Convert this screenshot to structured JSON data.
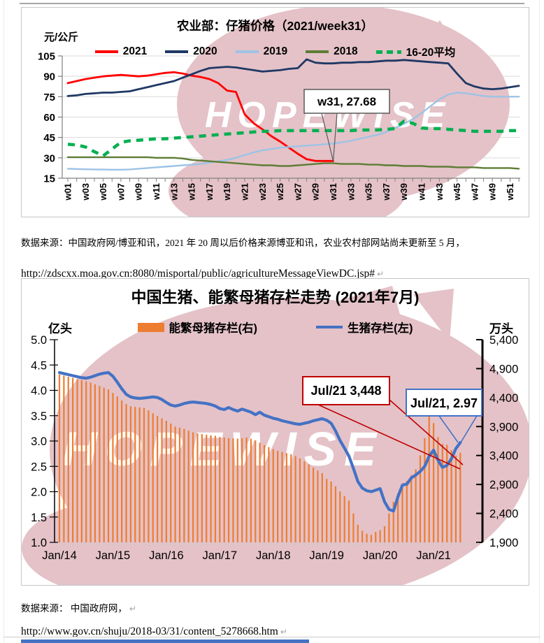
{
  "watermark": {
    "text": "HOPEWISE",
    "color": "#e4c2c8",
    "text_color": "#ffffff"
  },
  "notes": {
    "source1": "数据来源：中国政府网/博亚和讯，2021 年 20 周以后价格来源博亚和讯，农业农村部网站尚未更新至 5 月，",
    "url1": "http://zdscxx.moa.gov.cn:8080/misportal/public/agricultureMessageViewDC.jsp#",
    "source2": "数据来源： 中国政府网，",
    "url2": "http://www.gov.cn/shuju/2018-03/31/content_5278668.htm",
    "mark": "↵"
  },
  "chart_data": [
    {
      "type": "line",
      "title": "农业部：仔猪价格（2021/week31）",
      "ylabel": "元/公斤",
      "ylim": [
        15,
        105
      ],
      "yticks": [
        105,
        90,
        75,
        60,
        45,
        30,
        15
      ],
      "weeks": 52,
      "x_tick_labels": [
        "w01",
        "w03",
        "w05",
        "w07",
        "w09",
        "w11",
        "w13",
        "w15",
        "w17",
        "w19",
        "w21",
        "w23",
        "w25",
        "w27",
        "w29",
        "w31",
        "w33",
        "w35",
        "w37",
        "w39",
        "w41",
        "w43",
        "w45",
        "w47",
        "w49",
        "w51"
      ],
      "grid": true,
      "legend_position": "top",
      "annotation": {
        "label": "w31, 27.68",
        "week": 31,
        "value": 27.68
      },
      "series": [
        {
          "name": "2021",
          "color": "#FF0000",
          "style": "solid",
          "values": [
            85,
            86.5,
            88,
            89,
            90,
            90.5,
            91,
            90.5,
            90,
            90.5,
            91.5,
            92.5,
            93,
            92,
            90.5,
            89.5,
            88,
            85,
            79.5,
            78.5,
            62,
            55.5,
            51,
            46,
            42,
            37.5,
            33,
            29,
            27.7,
            27.7,
            27.68
          ]
        },
        {
          "name": "2020",
          "color": "#1F3864",
          "style": "solid",
          "values": [
            75.5,
            76,
            77,
            77.5,
            78,
            78,
            78.5,
            79,
            80.5,
            82,
            83.5,
            85,
            86.5,
            89,
            91.5,
            94,
            96,
            96.5,
            97,
            96.5,
            95.5,
            94.5,
            93.5,
            94,
            94.5,
            95.5,
            96,
            102.5,
            100,
            99.5,
            99.5,
            100,
            100,
            100.5,
            100.5,
            101,
            101.5,
            101.5,
            102,
            101.5,
            101,
            100.5,
            100,
            99.5,
            92,
            85,
            82.5,
            81,
            80.5,
            81,
            82,
            83
          ]
        },
        {
          "name": "2019",
          "color": "#9DC3E6",
          "style": "solid",
          "values": [
            22,
            21.8,
            21.6,
            21.5,
            21.4,
            21.3,
            21.3,
            21.5,
            22,
            22.5,
            23,
            23.5,
            24,
            24.5,
            25,
            25.5,
            26.5,
            27.5,
            28.5,
            30,
            32,
            34,
            35.5,
            36.5,
            37.5,
            38,
            38.5,
            39,
            39.5,
            40,
            40.5,
            41.5,
            42.5,
            44,
            45.5,
            47,
            49,
            52,
            55,
            58.5,
            63,
            68,
            73,
            76.5,
            78,
            77.5,
            76.5,
            75.5,
            75,
            75,
            75,
            75
          ]
        },
        {
          "name": "2018",
          "color": "#5E7D35",
          "style": "solid",
          "values": [
            30.5,
            30.5,
            30.5,
            30.5,
            30.5,
            30.5,
            30.5,
            30.5,
            30.5,
            30.5,
            30,
            30,
            30,
            29.5,
            28.5,
            28,
            27.5,
            27,
            26.5,
            26,
            25.5,
            25,
            24.5,
            24.5,
            24,
            24,
            24.5,
            25,
            25.5,
            26,
            26,
            25.5,
            25.5,
            25.5,
            25,
            25,
            24.5,
            24.5,
            24,
            24,
            24,
            23.5,
            23.5,
            23.5,
            23,
            23,
            23,
            22.5,
            22.5,
            22.5,
            22.5,
            22
          ]
        },
        {
          "name": "16-20平均",
          "color": "#00B050",
          "style": "dashed",
          "values": [
            40,
            39.5,
            38,
            34.5,
            31.5,
            36.5,
            41.5,
            42.5,
            43,
            43.5,
            44,
            44,
            44.5,
            45,
            45.5,
            46,
            46.5,
            47,
            47.5,
            48,
            48.5,
            49,
            49.5,
            49.5,
            50,
            50,
            50,
            50,
            50,
            50,
            50,
            50,
            50,
            50.5,
            50.5,
            50.5,
            51,
            51.5,
            57,
            55.5,
            52,
            51.5,
            51.5,
            51,
            50.5,
            50,
            49.5,
            49.5,
            49.5,
            49.5,
            50,
            50
          ]
        }
      ]
    },
    {
      "type": "bar+line",
      "title": "中国生猪、能繁母猪存栏走势 (2021年7月)",
      "left_axis_label": "亿头",
      "right_axis_label": "万头",
      "left_ylim": [
        1.0,
        5.0
      ],
      "right_ylim": [
        1900,
        5400
      ],
      "left_yticks": [
        5.0,
        4.5,
        4.0,
        3.5,
        3.0,
        2.5,
        2.0,
        1.5,
        1.0
      ],
      "left_ytick_labels": [
        "5.0",
        "4.5",
        "4.0",
        "3.5",
        "3.0",
        "2.5",
        "2.0",
        "1.5",
        "1.0"
      ],
      "right_yticks": [
        5400,
        4900,
        4400,
        3900,
        3400,
        2900,
        2400,
        1900
      ],
      "right_ytick_labels": [
        "5,400",
        "4,900",
        "4,400",
        "3,900",
        "3,400",
        "2,900",
        "2,400",
        "1,900"
      ],
      "x_tick_labels": [
        "Jan/14",
        "Jan/15",
        "Jan/16",
        "Jan/17",
        "Jan/18",
        "Jan/19",
        "Jan/20",
        "Jan/21"
      ],
      "months_start": "Jan/14",
      "months_end": "Jul/21",
      "grid": false,
      "bar_series": {
        "name": "能繁母猪存栏(右)",
        "axis": "right",
        "color": "#ED7D31",
        "values": [
          4800,
          4780,
          4760,
          4740,
          4720,
          4700,
          4680,
          4660,
          4630,
          4600,
          4570,
          4540,
          4480,
          4420,
          4350,
          4290,
          4250,
          4240,
          4230,
          4220,
          4180,
          4130,
          4080,
          4040,
          4000,
          3950,
          3900,
          3880,
          3860,
          3830,
          3800,
          3780,
          3770,
          3760,
          3750,
          3740,
          3720,
          3710,
          3700,
          3695,
          3690,
          3700,
          3710,
          3690,
          3660,
          3620,
          3580,
          3545,
          3510,
          3480,
          3460,
          3440,
          3420,
          3390,
          3350,
          3300,
          3245,
          3190,
          3140,
          3095,
          2995,
          2950,
          2870,
          2780,
          2700,
          2620,
          2400,
          2205,
          2100,
          2050,
          2030,
          2080,
          2110,
          2180,
          2400,
          2600,
          2750,
          2870,
          2960,
          3060,
          3160,
          3400,
          3700,
          4185,
          3960,
          3720,
          3600,
          3585,
          3495,
          3400,
          3448
        ]
      },
      "line_series": {
        "name": "生猪存栏(左)",
        "axis": "left",
        "color": "#4472C4",
        "values": [
          4.35,
          4.33,
          4.31,
          4.29,
          4.27,
          4.25,
          4.24,
          4.26,
          4.29,
          4.32,
          4.34,
          4.35,
          4.28,
          4.16,
          4.03,
          3.92,
          3.87,
          3.85,
          3.84,
          3.85,
          3.86,
          3.87,
          3.86,
          3.82,
          3.76,
          3.71,
          3.69,
          3.71,
          3.74,
          3.76,
          3.77,
          3.76,
          3.75,
          3.74,
          3.72,
          3.69,
          3.64,
          3.62,
          3.66,
          3.62,
          3.59,
          3.63,
          3.6,
          3.57,
          3.52,
          3.57,
          3.51,
          3.48,
          3.45,
          3.43,
          3.4,
          3.38,
          3.36,
          3.34,
          3.33,
          3.35,
          3.37,
          3.4,
          3.42,
          3.44,
          3.41,
          3.35,
          3.2,
          3.01,
          2.86,
          2.7,
          2.46,
          2.2,
          2.07,
          2.02,
          2.0,
          2.03,
          2.06,
          1.8,
          1.65,
          1.62,
          1.9,
          2.13,
          2.15,
          2.27,
          2.33,
          2.4,
          2.5,
          2.7,
          2.82,
          2.62,
          2.48,
          2.52,
          2.65,
          2.85,
          2.97
        ]
      },
      "annotations": [
        {
          "label": "Jul/21  3,448",
          "color": "#C00000",
          "month": "Jul/21",
          "value": 3448
        },
        {
          "label": "Jul/21, 2.97",
          "color": "#4472C4",
          "month": "Jul/21",
          "value": 2.97
        }
      ]
    }
  ]
}
